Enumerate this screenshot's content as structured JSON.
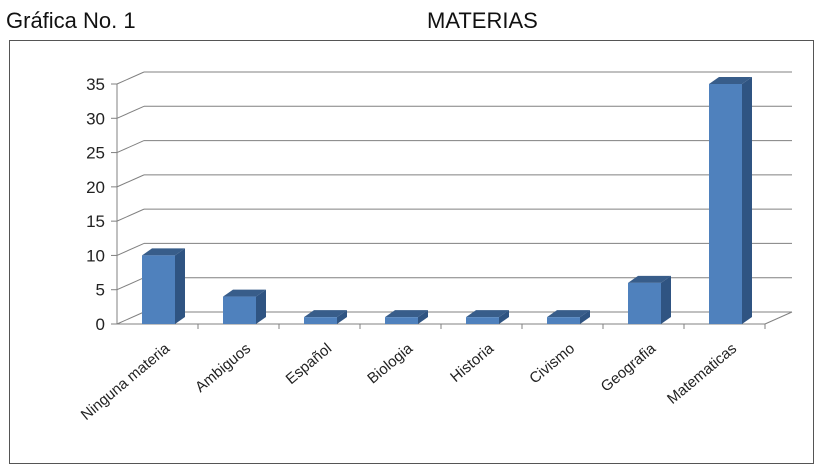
{
  "caption": {
    "label": "Gráfica No. 1",
    "title": "MATERIAS"
  },
  "colors": {
    "bar_front": "#4f81bd",
    "bar_side": "#2f5482",
    "bar_top": "#385d8a",
    "grid": "#808080",
    "text": "#222222"
  },
  "chart_data": {
    "type": "bar",
    "title": "MATERIAS",
    "categories": [
      "Ninguna materia",
      "Ambiguos",
      "Español",
      "Biologia",
      "Historia",
      "Civismo",
      "Geografia",
      "Matematicas"
    ],
    "values": [
      10,
      4,
      1,
      1,
      1,
      1,
      6,
      35
    ],
    "ylim": [
      0,
      35
    ],
    "yticks": [
      0,
      5,
      10,
      15,
      20,
      25,
      30,
      35
    ],
    "grid": true,
    "legend": "none",
    "style": "3d-column"
  }
}
